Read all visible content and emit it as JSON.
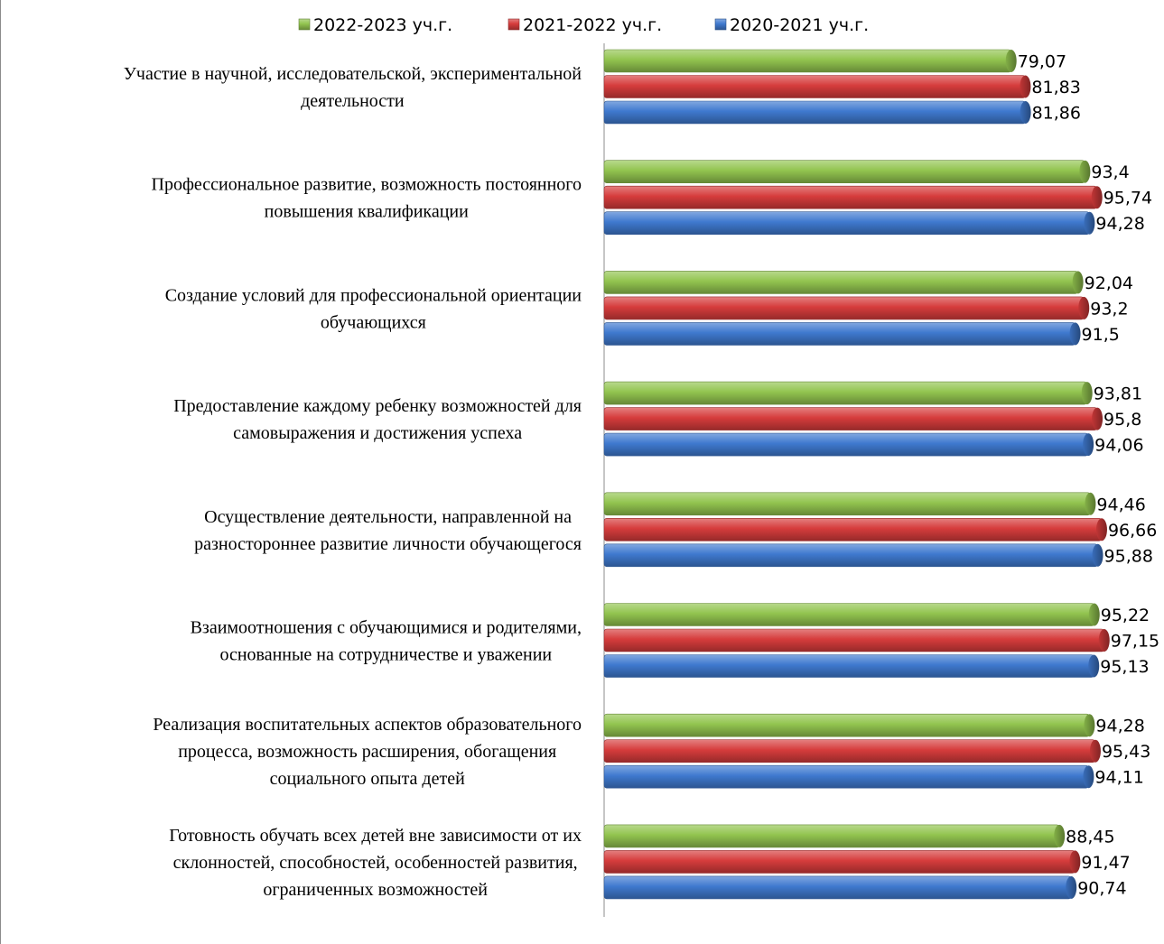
{
  "chart_data": {
    "type": "bar",
    "orientation": "horizontal",
    "legend_position": "top",
    "grid": false,
    "xlim": [
      0,
      100
    ],
    "categories": [
      [
        "Участие в научной, исследовательской, экспериментальной",
        "деятельности"
      ],
      [
        "Профессиональное развитие, возможность постоянного",
        "повышения квалификации"
      ],
      [
        "Создание условий для профессиональной ориентации",
        "обучающихся"
      ],
      [
        "Предоставление каждому ребенку возможностей для",
        "самовыражения и достижения успеха"
      ],
      [
        "Осуществление деятельности, направленной на",
        "разностороннее развитие личности обучающегося"
      ],
      [
        "Взаимоотношения с обучающимися и родителями,",
        "основанные на сотрудничестве и уважении"
      ],
      [
        "Реализация воспитательных аспектов образовательного",
        "процесса, возможность расширения, обогащения",
        "социального опыта детей"
      ],
      [
        "Готовность обучать всех детей вне зависимости от их",
        "склонностей, способностей, особенностей развития,",
        "ограниченных возможностей"
      ]
    ],
    "series": [
      {
        "name": "2022-2023 уч.г.",
        "color": "#92c44f",
        "labels": [
          "79,07",
          "93,4",
          "92,04",
          "93,81",
          "94,46",
          "95,22",
          "94,28",
          "88,45"
        ],
        "values": [
          79.07,
          93.4,
          92.04,
          93.81,
          94.46,
          95.22,
          94.28,
          88.45
        ]
      },
      {
        "name": "2021-2022 уч.г.",
        "color": "#d63c3c",
        "labels": [
          "81,83",
          "95,74",
          "93,2",
          "95,8",
          "96,66",
          "97,15",
          "95,43",
          "91,47"
        ],
        "values": [
          81.83,
          95.74,
          93.2,
          95.8,
          96.66,
          97.15,
          95.43,
          91.47
        ]
      },
      {
        "name": "2020-2021 уч.г.",
        "color": "#3f79cf",
        "labels": [
          "81,86",
          "94,28",
          "91,5",
          "94,06",
          "95,88",
          "95,13",
          "94,11",
          "90,74"
        ],
        "values": [
          81.86,
          94.28,
          91.5,
          94.06,
          95.88,
          95.13,
          94.11,
          90.74
        ]
      }
    ]
  }
}
